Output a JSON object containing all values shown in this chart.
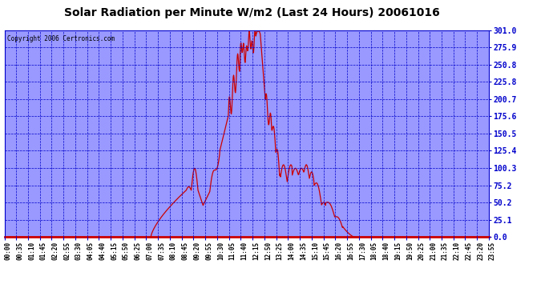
{
  "title": "Solar Radiation per Minute W/m2 (Last 24 Hours) 20061016",
  "copyright": "Copyright 2006 Certronics.com",
  "background_color": "#ffffff",
  "plot_bg_color": "#9999ff",
  "line_color": "#cc0000",
  "grid_color": "#0000cc",
  "text_color": "#000000",
  "title_bg": "#ffffff",
  "yticks": [
    0.0,
    25.1,
    50.2,
    75.2,
    100.3,
    125.4,
    150.5,
    175.6,
    200.7,
    225.8,
    250.8,
    275.9,
    301.0
  ],
  "ylim": [
    0.0,
    301.0
  ],
  "xtick_labels": [
    "00:00",
    "00:35",
    "01:10",
    "01:45",
    "02:20",
    "02:55",
    "03:30",
    "04:05",
    "04:40",
    "05:15",
    "05:50",
    "06:25",
    "07:00",
    "07:35",
    "08:10",
    "08:45",
    "09:20",
    "09:55",
    "10:30",
    "11:05",
    "11:40",
    "12:15",
    "12:50",
    "13:25",
    "14:00",
    "14:35",
    "15:10",
    "15:45",
    "16:20",
    "16:55",
    "17:30",
    "18:05",
    "18:40",
    "19:15",
    "19:50",
    "20:25",
    "21:00",
    "21:35",
    "22:10",
    "22:45",
    "23:20",
    "23:55"
  ],
  "solar_data_key_points": {
    "dawn_minute": 435,
    "dusk_minute": 1035,
    "peak_minute": 755,
    "peak_value": 301.0
  }
}
